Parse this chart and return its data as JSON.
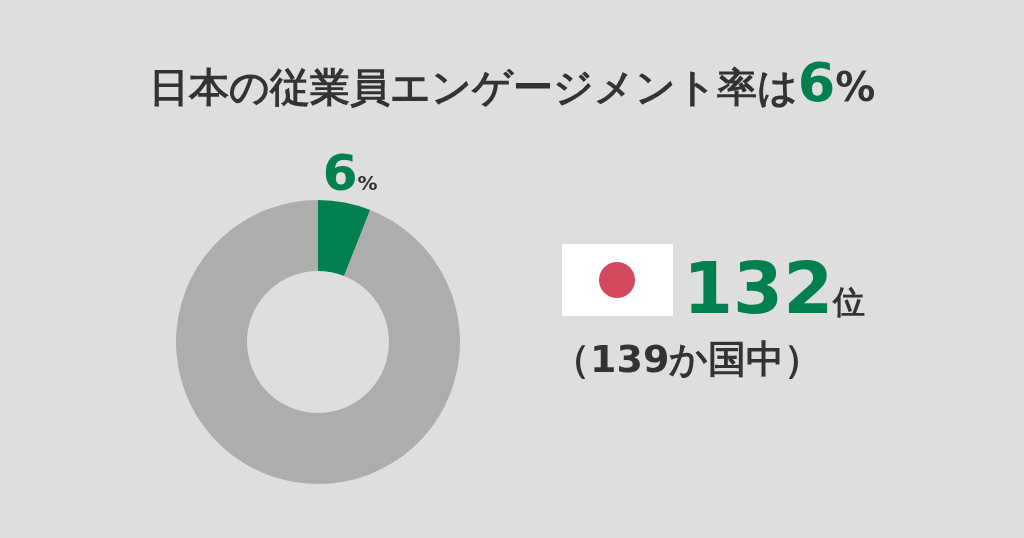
{
  "chart_data": {
    "type": "donut",
    "title": "日本の従業員エンゲージメント率は6%",
    "categories": [
      null,
      null
    ],
    "values": [
      6,
      94
    ],
    "colors": [
      "#00804f",
      "#adadad"
    ],
    "value_labels": [
      "6%",
      null
    ],
    "legend": false,
    "annotations": [
      "132位",
      "（139か国中）"
    ]
  }
}
